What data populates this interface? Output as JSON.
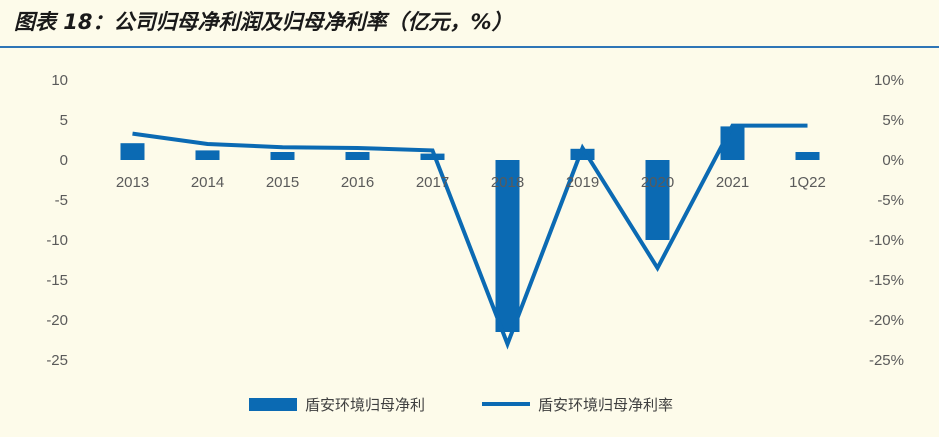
{
  "title": "图表 18：公司归母净利润及归母净利率（亿元，%）",
  "colors": {
    "series": "#0b6ab3",
    "background": "#fdfbea",
    "title_rule": "#2e75b6",
    "tick_text": "#5a5a5a"
  },
  "chart_data": {
    "type": "bar",
    "title": "图表 18：公司归母净利润及归母净利率（亿元，%）",
    "categories": [
      "2013",
      "2014",
      "2015",
      "2016",
      "2017",
      "2018",
      "2019",
      "2020",
      "2021",
      "1Q22"
    ],
    "series": [
      {
        "name": "盾安环境归母净利",
        "type": "bar",
        "axis": "left",
        "values": [
          2.1,
          1.2,
          1.0,
          1.0,
          0.8,
          -21.5,
          1.4,
          -10.0,
          4.2,
          1.0
        ]
      },
      {
        "name": "盾安环境归母净利率",
        "type": "line",
        "axis": "right",
        "unit": "%",
        "values": [
          3.3,
          2.0,
          1.6,
          1.5,
          1.2,
          -23.0,
          1.5,
          -13.5,
          4.3,
          4.3
        ]
      }
    ],
    "y_left": {
      "ylim": [
        -25,
        10
      ],
      "ticks": [
        "10",
        "5",
        "0",
        "-5",
        "-10",
        "-15",
        "-20",
        "-25"
      ],
      "tick_values": [
        10,
        5,
        0,
        -5,
        -10,
        -15,
        -20,
        -25
      ]
    },
    "y_right": {
      "ylim": [
        -25,
        10
      ],
      "ticks": [
        "10%",
        "5%",
        "0%",
        "-5%",
        "-10%",
        "-15%",
        "-20%",
        "-25%"
      ],
      "tick_values": [
        10,
        5,
        0,
        -5,
        -10,
        -15,
        -20,
        -25
      ]
    },
    "xlabel": "",
    "ylabel": "",
    "grid": false,
    "legend": {
      "position": "bottom",
      "entries": [
        "盾安环境归母净利",
        "盾安环境归母净利率"
      ]
    }
  }
}
